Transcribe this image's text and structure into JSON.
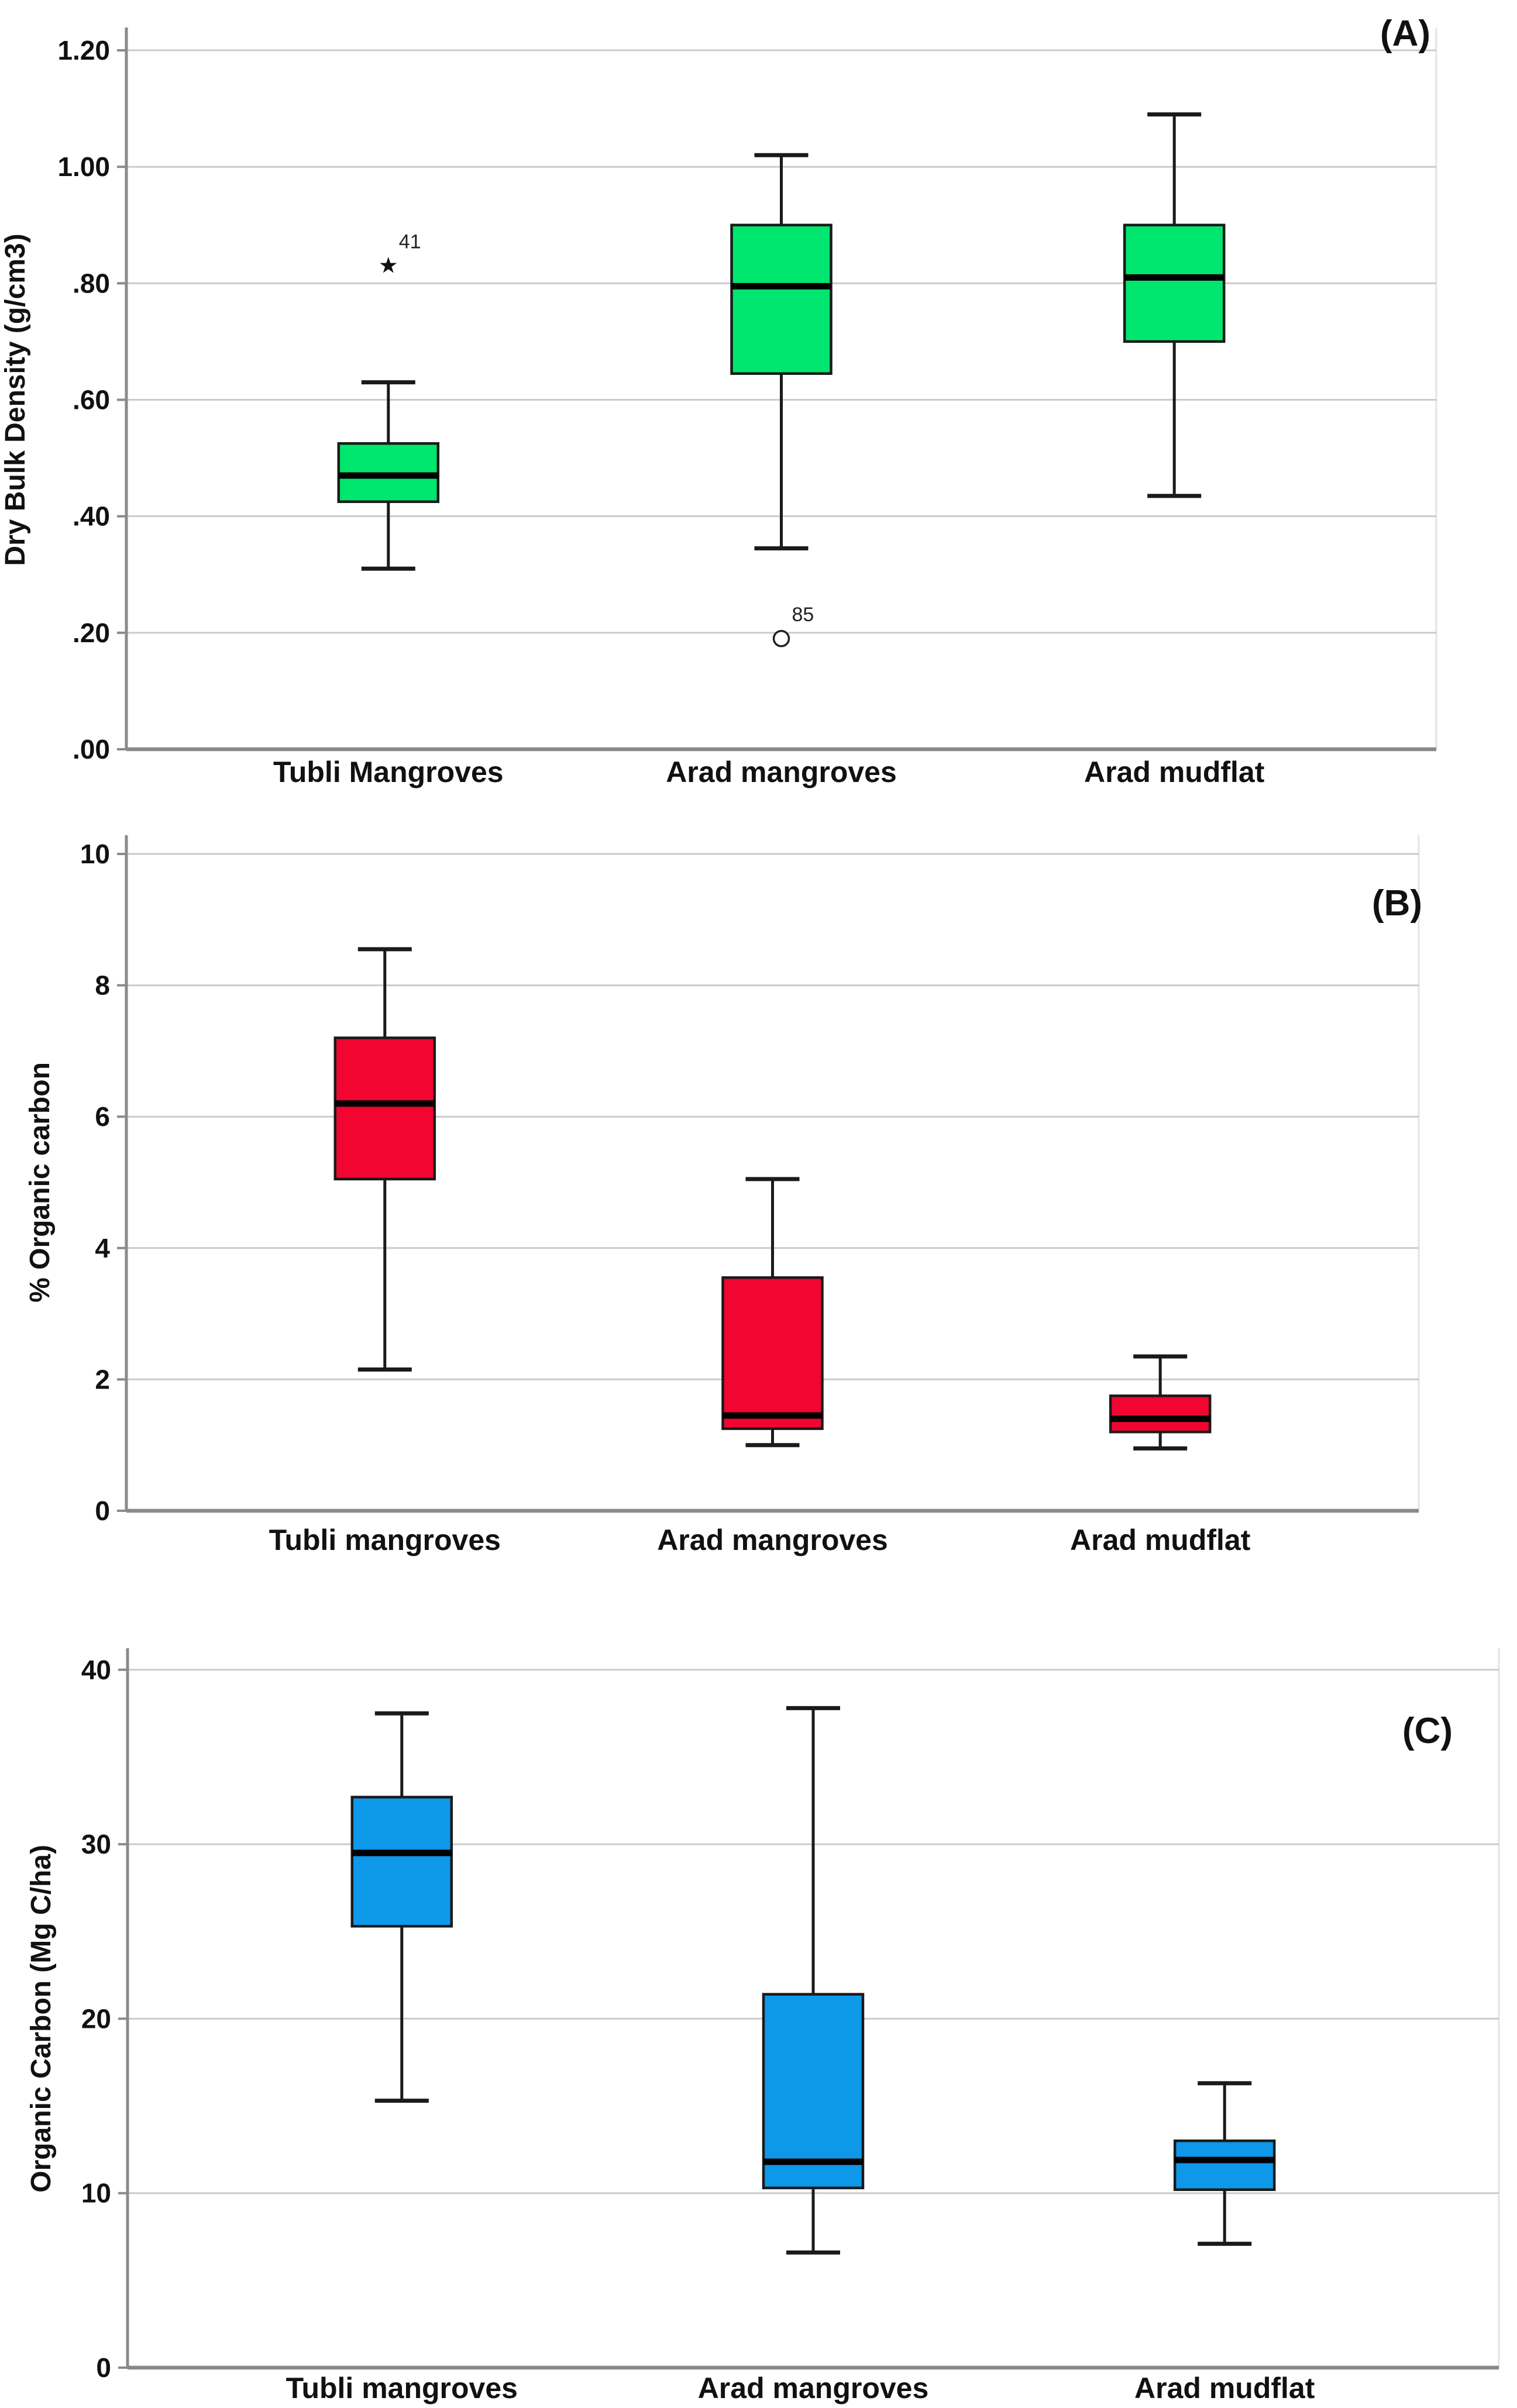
{
  "figure": {
    "background": "#FFFFFF",
    "grid_color": "#CBCBCB",
    "axis_color": "#8A8A8A",
    "frame_color": "#E3E3E3",
    "box_stroke_color": "#1A1A1A",
    "median_color": "#000000"
  },
  "chart_data": [
    {
      "type": "box",
      "panel_label": "(A)",
      "ylabel": "Dry Bulk Density (g/cm3)",
      "ylim": [
        0,
        1.24
      ],
      "grid": true,
      "yticks": [
        {
          "value": 0.0,
          "label": ".00"
        },
        {
          "value": 0.2,
          "label": ".20"
        },
        {
          "value": 0.4,
          "label": ".40"
        },
        {
          "value": 0.6,
          "label": ".60"
        },
        {
          "value": 0.8,
          "label": ".80"
        },
        {
          "value": 1.0,
          "label": "1.00"
        },
        {
          "value": 1.2,
          "label": "1.20"
        }
      ],
      "box_color": "#00E66E",
      "series": [
        {
          "category": "Tubli Mangroves",
          "whisker_low": 0.31,
          "q1": 0.425,
          "median": 0.47,
          "q3": 0.525,
          "whisker_high": 0.63,
          "outliers": [
            {
              "value": 0.83,
              "label": "41",
              "marker": "star"
            }
          ]
        },
        {
          "category": "Arad mangroves",
          "whisker_low": 0.345,
          "q1": 0.645,
          "median": 0.795,
          "q3": 0.9,
          "whisker_high": 1.02,
          "outliers": [
            {
              "value": 0.19,
              "label": "85",
              "marker": "circle"
            }
          ]
        },
        {
          "category": "Arad mudflat",
          "whisker_low": 0.435,
          "q1": 0.7,
          "median": 0.81,
          "q3": 0.9,
          "whisker_high": 1.09,
          "outliers": []
        }
      ]
    },
    {
      "type": "box",
      "panel_label": "(B)",
      "ylabel": "% Organic carbon",
      "ylim": [
        0,
        10.3
      ],
      "grid": true,
      "yticks": [
        {
          "value": 0,
          "label": "0"
        },
        {
          "value": 2,
          "label": "2"
        },
        {
          "value": 4,
          "label": "4"
        },
        {
          "value": 6,
          "label": "6"
        },
        {
          "value": 8,
          "label": "8"
        },
        {
          "value": 10,
          "label": "10"
        }
      ],
      "box_color": "#F20530",
      "series": [
        {
          "category": "Tubli mangroves",
          "whisker_low": 2.15,
          "q1": 5.05,
          "median": 6.2,
          "q3": 7.2,
          "whisker_high": 8.55,
          "outliers": []
        },
        {
          "category": "Arad mangroves",
          "whisker_low": 1.0,
          "q1": 1.25,
          "median": 1.45,
          "q3": 3.55,
          "whisker_high": 5.05,
          "outliers": []
        },
        {
          "category": "Arad mudflat",
          "whisker_low": 0.95,
          "q1": 1.2,
          "median": 1.4,
          "q3": 1.75,
          "whisker_high": 2.35,
          "outliers": []
        }
      ]
    },
    {
      "type": "box",
      "panel_label": "(C)",
      "ylabel": "Organic Carbon (Mg C/ha)",
      "ylim": [
        0,
        41.3
      ],
      "grid": true,
      "yticks": [
        {
          "value": 0,
          "label": "0"
        },
        {
          "value": 10,
          "label": "10"
        },
        {
          "value": 20,
          "label": "20"
        },
        {
          "value": 30,
          "label": "30"
        },
        {
          "value": 40,
          "label": "40"
        }
      ],
      "box_color": "#0E98EA",
      "series": [
        {
          "category": "Tubli mangroves",
          "whisker_low": 15.3,
          "q1": 25.3,
          "median": 29.5,
          "q3": 32.7,
          "whisker_high": 37.5,
          "outliers": []
        },
        {
          "category": "Arad mangroves",
          "whisker_low": 6.6,
          "q1": 10.3,
          "median": 11.8,
          "q3": 21.4,
          "whisker_high": 37.8,
          "outliers": []
        },
        {
          "category": "Arad mudflat",
          "whisker_low": 7.1,
          "q1": 10.2,
          "median": 11.9,
          "q3": 13.0,
          "whisker_high": 16.3,
          "outliers": []
        }
      ]
    }
  ]
}
